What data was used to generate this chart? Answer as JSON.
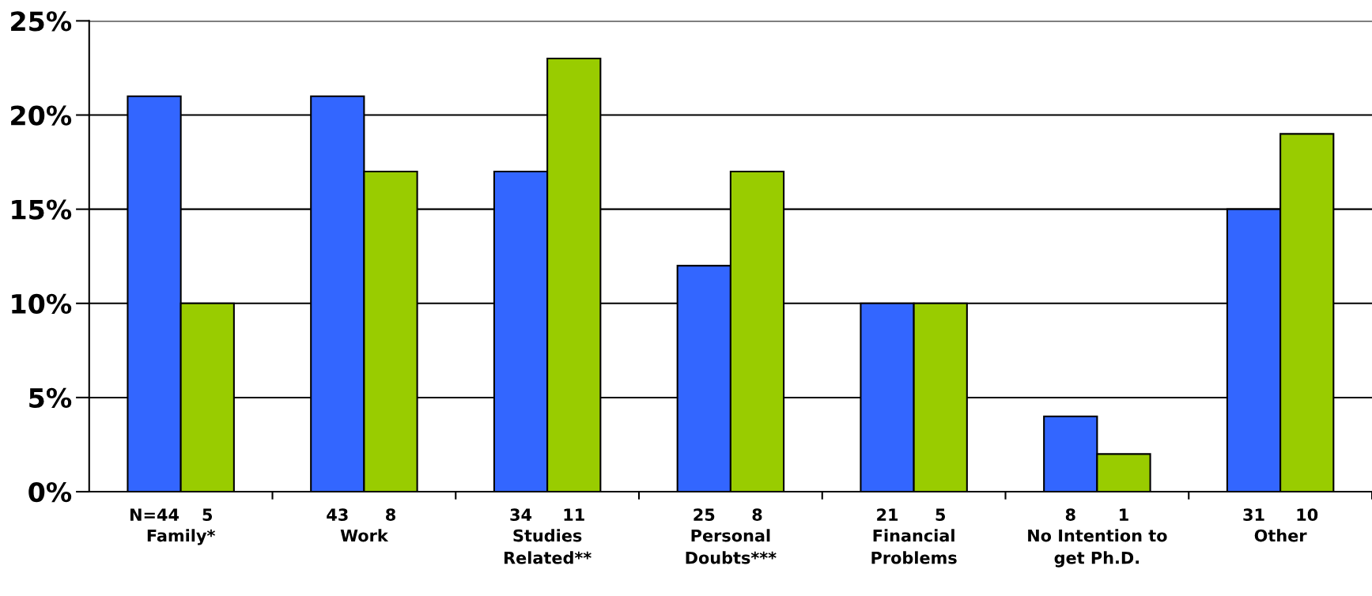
{
  "chart_data": {
    "type": "bar",
    "categories": [
      "Family*",
      "Work",
      "Studies\nRelated**",
      "Personal\nDoubts***",
      "Financial\nProblems",
      "No Intention to\nget Ph.D.",
      "Other"
    ],
    "series": [
      {
        "color": "#3366ff",
        "values": [
          21,
          21,
          17,
          12,
          10,
          4,
          15
        ]
      },
      {
        "color": "#99cc00",
        "values": [
          10,
          17,
          23,
          17,
          10,
          2,
          19
        ]
      }
    ],
    "ylim": [
      0,
      25
    ],
    "yticks": [
      {
        "value": 0,
        "label": "0%"
      },
      {
        "value": 5,
        "label": "5%"
      },
      {
        "value": 10,
        "label": "10%"
      },
      {
        "value": 15,
        "label": "15%"
      },
      {
        "value": 20,
        "label": "20%"
      },
      {
        "value": 25,
        "label": "25%"
      }
    ],
    "grid": "y",
    "annotations": [
      "N=44",
      "5",
      "43",
      "8",
      "34",
      "11",
      "25",
      "8",
      "21",
      "5",
      "8",
      "1",
      "31",
      "10"
    ]
  }
}
